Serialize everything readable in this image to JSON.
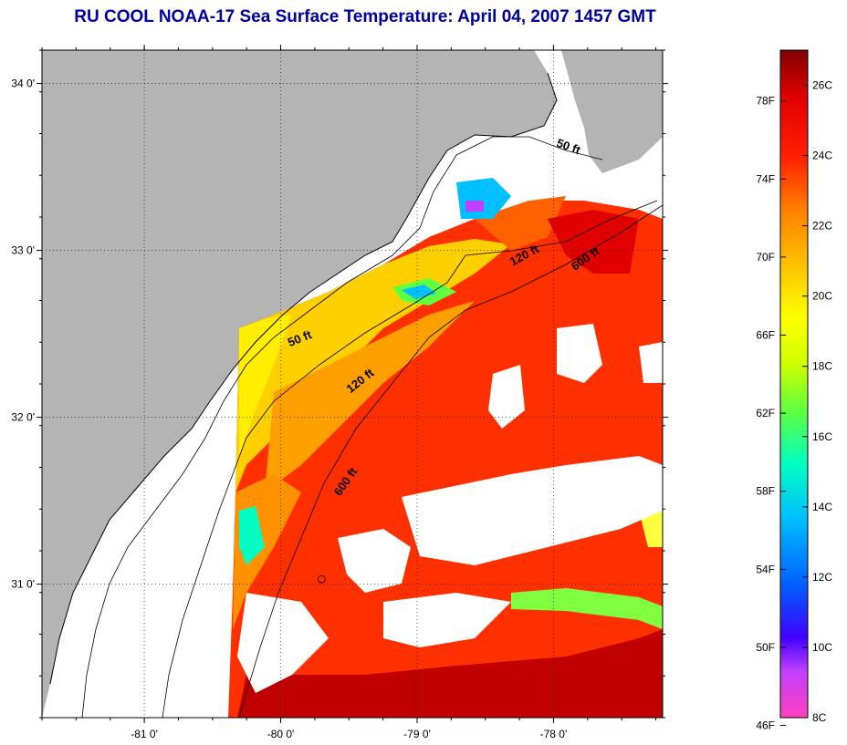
{
  "title": "RU COOL  NOAA-17  Sea Surface Temperature:  April 04, 2007 1457 GMT",
  "colors": {
    "title": "#0000a0",
    "land": "#b4b4b4",
    "cloud": "#ffffff",
    "frame": "#000000"
  },
  "map": {
    "lat_ticks": [
      {
        "value": 34.0,
        "label": "34 0'"
      },
      {
        "value": 33.0,
        "label": "33 0'"
      },
      {
        "value": 32.0,
        "label": "32 0'"
      },
      {
        "value": 31.0,
        "label": "31 0'"
      }
    ],
    "lon_ticks": [
      {
        "value": -81.0,
        "label": "-81 0'"
      },
      {
        "value": -80.0,
        "label": "-80 0'"
      },
      {
        "value": -79.0,
        "label": "-79 0'"
      },
      {
        "value": -78.0,
        "label": "-78 0'"
      }
    ],
    "lon_range": [
      -81.75,
      -77.2
    ],
    "lat_range": [
      30.2,
      34.2
    ],
    "contour_labels": [
      {
        "text": "50 ft",
        "lon": -77.9,
        "lat": 33.6,
        "angle": 20
      },
      {
        "text": "120 ft",
        "lon": -78.2,
        "lat": 32.95,
        "angle": -28
      },
      {
        "text": "600 ft",
        "lon": -77.75,
        "lat": 32.93,
        "angle": -35
      },
      {
        "text": "50 ft",
        "lon": -79.85,
        "lat": 32.45,
        "angle": -22
      },
      {
        "text": "120 ft",
        "lon": -79.4,
        "lat": 32.2,
        "angle": -38
      },
      {
        "text": "600 ft",
        "lon": -79.5,
        "lat": 31.6,
        "angle": -55
      }
    ],
    "station_marker": {
      "lon": -79.7,
      "lat": 31.03
    }
  },
  "colorbar": {
    "fahrenheit_labels": [
      "78F",
      "74F",
      "70F",
      "66F",
      "62F",
      "58F",
      "54F",
      "50F",
      "46F"
    ],
    "celsius_labels": [
      "26C",
      "24C",
      "22C",
      "20C",
      "18C",
      "16C",
      "14C",
      "12C",
      "10C",
      "8C"
    ],
    "range_c": [
      8,
      27
    ]
  }
}
